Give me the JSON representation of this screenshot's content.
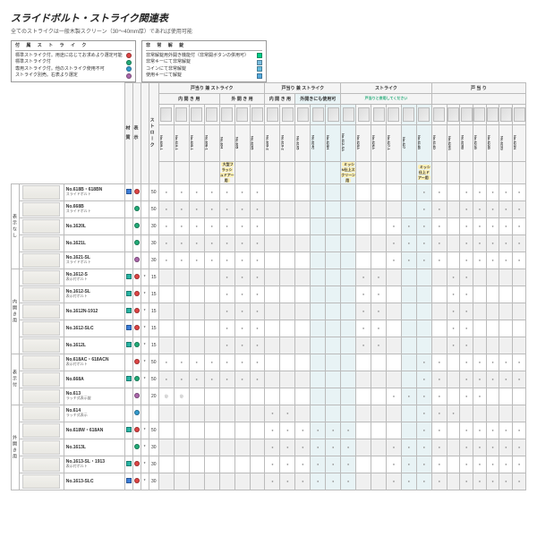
{
  "title": "スライドボルト・ストライク関連表",
  "subtitle": "全てのストライクは一般木製スクリーン（30〜40mm厚）であれば使用可能",
  "legend_strike": {
    "title": "付 属 ス ト ラ イ ク",
    "rows": [
      {
        "text": "標準ストライク付。用途に応じてお求めより選定可能",
        "color": "#d44"
      },
      {
        "text": "標準ストライク付",
        "color": "#2a7"
      },
      {
        "text": "専用ストライク付。他のストライク使用不可",
        "color": "#39c"
      },
      {
        "text": "ストライク別売。右表より選定",
        "color": "#a6a"
      }
    ]
  },
  "legend_func": {
    "title": "非 常 解 錠",
    "rows": [
      {
        "text": "非常解錠用外開き機能付（非常開ボタンの併用可）",
        "color": "#0c8"
      },
      {
        "text": "非常キーにて非常解錠",
        "color": "#7bd"
      },
      {
        "text": "コインにて非常解錠",
        "color": "#6bd"
      },
      {
        "text": "使用キーにて解錠",
        "color": "#5ad"
      }
    ]
  },
  "head_cols": {
    "material": "材 質",
    "indicator": "表 示",
    "stroke": "ストローク",
    "product": "製 品 名"
  },
  "col_group_top": [
    {
      "label": "戸当り 兼 ストライク",
      "span": 7
    },
    {
      "label": "戸当り 兼 ストライク",
      "span": 5
    },
    {
      "label": "ストライク",
      "span": 6
    },
    {
      "label": "戸 当 り",
      "span": 7
    }
  ],
  "col_group_mid": [
    {
      "label": "内 開 き 用",
      "span": 4,
      "hl": false
    },
    {
      "label": "外 開 き 用",
      "span": 3,
      "hl": false
    },
    {
      "label": "内 開 き 用",
      "span": 2,
      "hl": false
    },
    {
      "label": "外開きにも使用可",
      "span": 3,
      "hl": true
    },
    {
      "label": "戸当りと併用してください",
      "span": 6,
      "note": "green"
    },
    {
      "label": "",
      "span": 7,
      "hl": false
    }
  ],
  "strike_cols": [
    "No.609-1",
    "No.610-1",
    "No.605-1",
    "No.606-1",
    "No.604",
    "No.605",
    "No.6205",
    "No.609-2",
    "No.610-2",
    "No.6105",
    "No.624C",
    "No.625H",
    "No.612-SA",
    "No.625A",
    "No.626A",
    "No.627-1",
    "No.627",
    "No.614B",
    "No.614D",
    "No.620S",
    "No.620B",
    "No.621B",
    "No.622B",
    "No.623S",
    "No.623N"
  ],
  "highlight_cols": [
    10,
    11,
    12,
    16,
    17
  ],
  "rows": [
    {
      "grp": "表示なし",
      "name": "No.618B・618BN",
      "desc": "スライドボルト",
      "icon": "blue",
      "ind1": "#d44",
      "ind2": "",
      "st": "50",
      "dots": [
        1,
        1,
        1,
        1,
        1,
        1,
        1,
        0,
        0,
        0,
        0,
        0,
        0,
        0,
        0,
        0,
        0,
        1,
        1,
        0,
        1,
        1,
        1,
        1,
        1
      ]
    },
    {
      "grp": "",
      "name": "No.668B",
      "desc": "スライドボルト",
      "icon": "",
      "ind1": "#2a7",
      "ind2": "",
      "st": "50",
      "dots": [
        1,
        1,
        1,
        1,
        1,
        1,
        1,
        0,
        0,
        0,
        0,
        0,
        0,
        0,
        0,
        0,
        0,
        1,
        1,
        0,
        1,
        1,
        1,
        1,
        1
      ]
    },
    {
      "grp": "",
      "name": "No.1620L",
      "desc": "",
      "icon": "",
      "ind1": "#2a7",
      "ind2": "",
      "st": "30",
      "dots": [
        1,
        1,
        1,
        1,
        1,
        1,
        1,
        0,
        0,
        0,
        0,
        0,
        0,
        0,
        0,
        1,
        1,
        1,
        1,
        0,
        1,
        1,
        1,
        1,
        1
      ]
    },
    {
      "grp": "",
      "name": "No.1621L",
      "desc": "",
      "icon": "",
      "ind1": "#2a7",
      "ind2": "",
      "st": "30",
      "dots": [
        1,
        1,
        1,
        1,
        1,
        1,
        1,
        0,
        0,
        0,
        0,
        0,
        0,
        0,
        0,
        1,
        1,
        1,
        1,
        0,
        1,
        1,
        1,
        1,
        1
      ]
    },
    {
      "grp": "",
      "name": "No.1621-SL",
      "desc": "スライドボルト",
      "icon": "",
      "ind1": "#a6a",
      "ind2": "",
      "st": "30",
      "dots": [
        1,
        1,
        1,
        1,
        1,
        1,
        1,
        0,
        0,
        0,
        0,
        0,
        0,
        0,
        0,
        1,
        1,
        1,
        1,
        0,
        1,
        1,
        1,
        1,
        1
      ],
      "sep": true
    },
    {
      "grp": "内開き用",
      "name": "No.1612-S",
      "desc": "表示付ボルト",
      "icon": "teal",
      "ind1": "#d44",
      "ind2": "*",
      "st": "15",
      "dots": [
        0,
        0,
        0,
        0,
        1,
        1,
        1,
        0,
        0,
        0,
        0,
        0,
        0,
        1,
        1,
        0,
        0,
        0,
        0,
        1,
        1,
        0,
        0,
        0,
        0
      ]
    },
    {
      "grp": "",
      "name": "No.1612-SL",
      "desc": "表示付ボルト",
      "icon": "teal",
      "ind1": "#d44",
      "ind2": "*",
      "st": "15",
      "dots": [
        0,
        0,
        0,
        0,
        1,
        1,
        1,
        0,
        0,
        0,
        0,
        0,
        0,
        1,
        1,
        0,
        0,
        0,
        0,
        1,
        1,
        0,
        0,
        0,
        0
      ]
    },
    {
      "grp": "",
      "name": "No.1612N-1912",
      "desc": "",
      "icon": "teal",
      "ind1": "#d44",
      "ind2": "*",
      "st": "15",
      "dots": [
        0,
        0,
        0,
        0,
        1,
        1,
        1,
        0,
        0,
        0,
        0,
        0,
        0,
        1,
        1,
        0,
        0,
        0,
        0,
        1,
        1,
        0,
        0,
        0,
        0
      ]
    },
    {
      "grp": "",
      "name": "No.1612-SLC",
      "desc": "",
      "icon": "blue",
      "ind1": "#d44",
      "ind2": "*",
      "st": "15",
      "dots": [
        0,
        0,
        0,
        0,
        1,
        1,
        1,
        0,
        0,
        0,
        0,
        0,
        0,
        1,
        1,
        0,
        0,
        0,
        0,
        1,
        1,
        0,
        0,
        0,
        0
      ]
    },
    {
      "grp": "",
      "name": "No.1612L",
      "desc": "",
      "icon": "teal",
      "ind1": "#2a7",
      "ind2": "*",
      "st": "15",
      "dots": [
        0,
        0,
        0,
        0,
        1,
        1,
        1,
        0,
        0,
        0,
        0,
        0,
        0,
        1,
        1,
        0,
        0,
        0,
        0,
        1,
        1,
        0,
        0,
        0,
        0
      ],
      "sep": true
    },
    {
      "grp": "表示付",
      "name": "No.618AC・618ACN",
      "desc": "表示付ボルト",
      "icon": "",
      "ind1": "#d44",
      "ind2": "*",
      "st": "50",
      "dots": [
        1,
        1,
        1,
        1,
        1,
        1,
        1,
        0,
        0,
        0,
        0,
        0,
        0,
        0,
        0,
        0,
        0,
        1,
        1,
        0,
        1,
        1,
        1,
        1,
        1
      ]
    },
    {
      "grp": "",
      "name": "No.668A",
      "desc": "",
      "icon": "teal",
      "ind1": "#2a7",
      "ind2": "*",
      "st": "50",
      "dots": [
        1,
        1,
        1,
        1,
        1,
        1,
        1,
        0,
        0,
        0,
        0,
        0,
        0,
        0,
        0,
        0,
        0,
        1,
        1,
        0,
        1,
        1,
        1,
        1,
        1
      ]
    },
    {
      "grp": "",
      "name": "No.613",
      "desc": "ラッチ式表示錠",
      "icon": "",
      "ind1": "#a6a",
      "ind2": "",
      "st": "20",
      "dots": [
        2,
        2,
        0,
        0,
        0,
        0,
        0,
        0,
        0,
        0,
        0,
        0,
        0,
        0,
        0,
        1,
        1,
        1,
        1,
        0,
        1,
        1,
        0,
        0,
        0
      ],
      "sep": true
    },
    {
      "grp": "外開き用",
      "name": "No.614",
      "desc": "ラッチ式表示",
      "icon": "",
      "ind1": "#39c",
      "ind2": "",
      "st": "",
      "dots": [
        0,
        0,
        0,
        0,
        0,
        0,
        0,
        1,
        1,
        0,
        0,
        0,
        0,
        0,
        0,
        0,
        0,
        1,
        1,
        1,
        0,
        0,
        0,
        0,
        0
      ]
    },
    {
      "grp": "",
      "name": "No.618W・618AN",
      "desc": "",
      "icon": "teal",
      "ind1": "#d44",
      "ind2": "*",
      "st": "50",
      "dots": [
        0,
        0,
        0,
        0,
        0,
        0,
        0,
        1,
        1,
        1,
        1,
        1,
        1,
        0,
        0,
        0,
        0,
        1,
        1,
        0,
        1,
        1,
        1,
        1,
        1
      ]
    },
    {
      "grp": "",
      "name": "No.1613L",
      "desc": "",
      "icon": "",
      "ind1": "#2a7",
      "ind2": "*",
      "st": "30",
      "dots": [
        0,
        0,
        0,
        0,
        0,
        0,
        0,
        1,
        1,
        1,
        1,
        1,
        1,
        0,
        0,
        1,
        1,
        1,
        1,
        0,
        1,
        1,
        1,
        1,
        1
      ]
    },
    {
      "grp": "",
      "name": "No.1613-SL・1913",
      "desc": "表示付ボルト",
      "icon": "teal",
      "ind1": "#d44",
      "ind2": "*",
      "st": "30",
      "dots": [
        0,
        0,
        0,
        0,
        0,
        0,
        0,
        1,
        1,
        1,
        1,
        1,
        1,
        0,
        0,
        1,
        1,
        1,
        1,
        0,
        1,
        1,
        1,
        1,
        1
      ]
    },
    {
      "grp": "",
      "name": "No.1613-SLC",
      "desc": "",
      "icon": "blue",
      "ind1": "#d44",
      "ind2": "*",
      "st": "30",
      "dots": [
        0,
        0,
        0,
        0,
        0,
        0,
        0,
        1,
        1,
        1,
        1,
        1,
        1,
        0,
        0,
        1,
        1,
        1,
        1,
        0,
        1,
        1,
        1,
        1,
        1
      ]
    }
  ],
  "yellow_notes": {
    "4": "大型フラッシュドアー用",
    "12": "ミッシN仕上スクリーン用",
    "17": "ミッシ仕上ドアー用"
  },
  "colors": {
    "blue": "#3b7dd8",
    "teal": "#27b4a3"
  }
}
